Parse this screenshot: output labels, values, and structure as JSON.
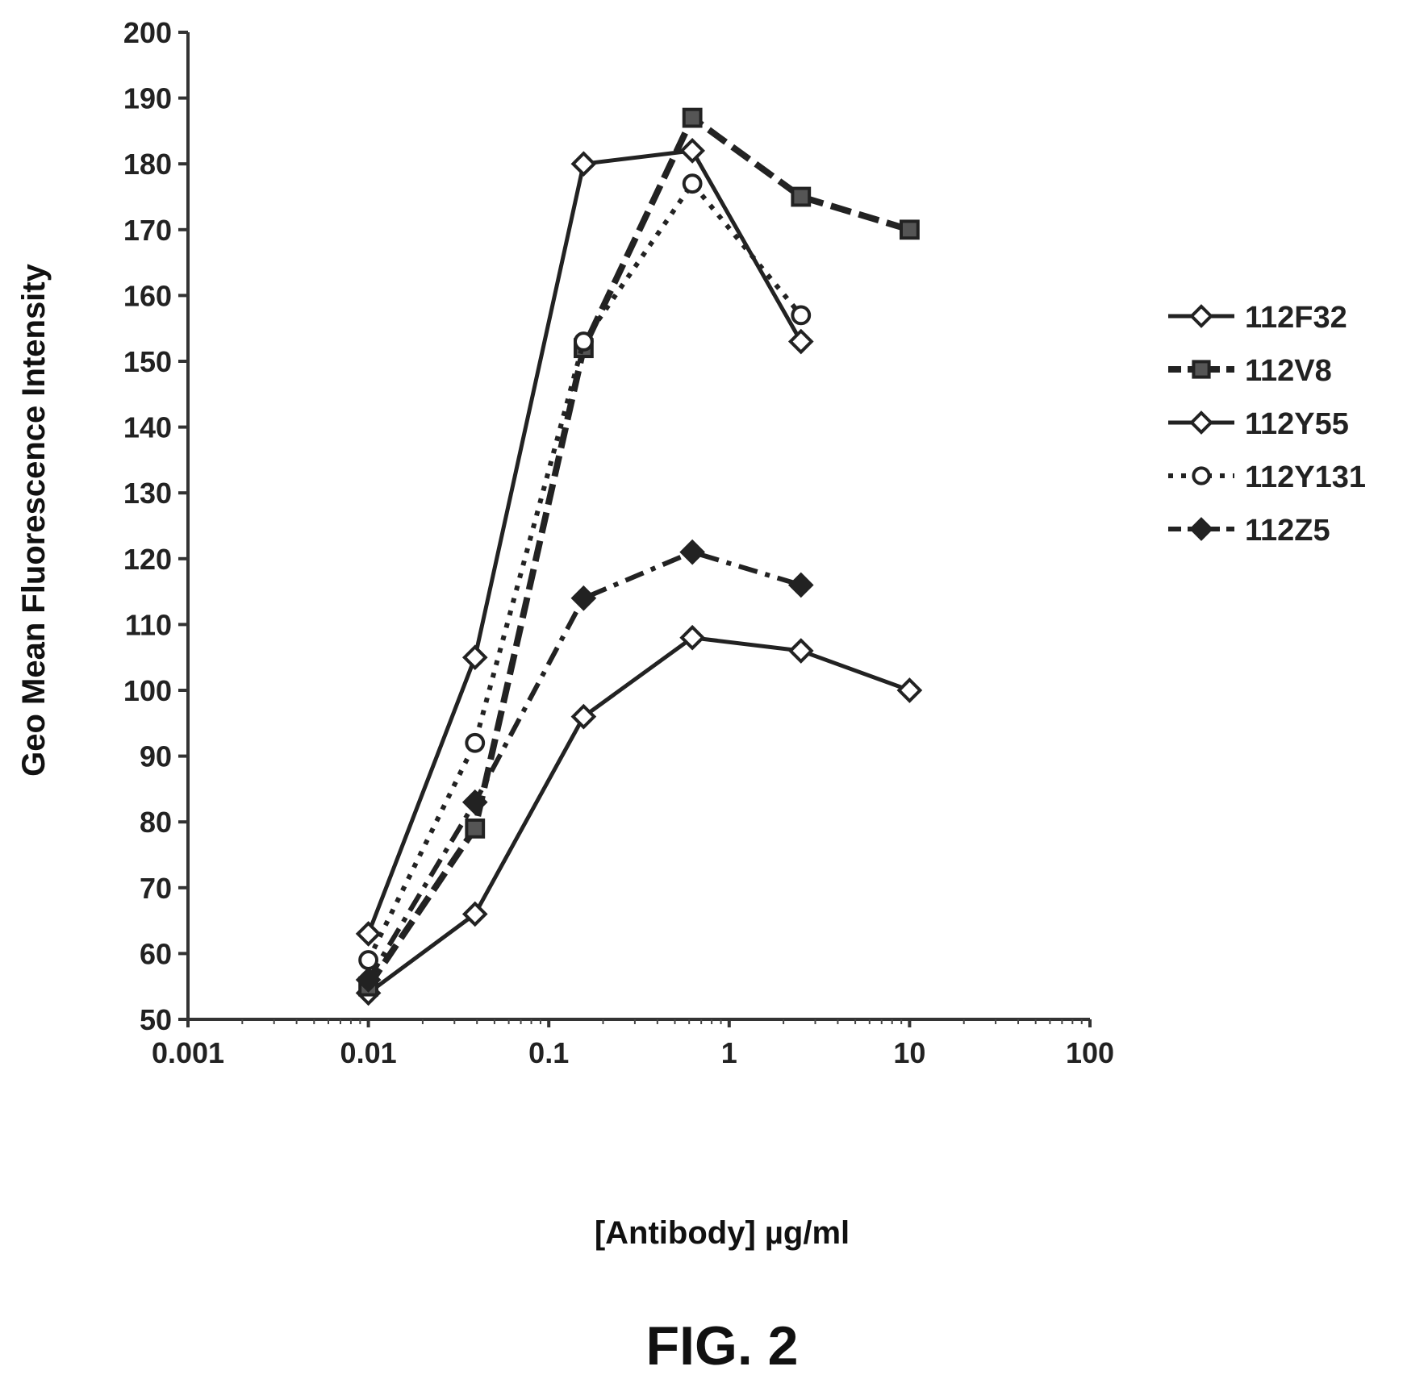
{
  "chart_data": {
    "type": "line",
    "xlabel": "[Antibody] µg/ml",
    "ylabel": "Geo Mean Fluorescence Intensity",
    "caption": "FIG. 2",
    "x_scale": "log",
    "xlim": [
      0.001,
      100
    ],
    "ylim": [
      50,
      200
    ],
    "x_ticks": [
      0.001,
      0.01,
      0.1,
      1,
      10,
      100
    ],
    "x_tick_labels": [
      "0.001",
      "0.01",
      "0.1",
      "1",
      "10",
      "100"
    ],
    "y_ticks": [
      50,
      60,
      70,
      80,
      90,
      100,
      110,
      120,
      130,
      140,
      150,
      160,
      170,
      180,
      190,
      200
    ],
    "y_tick_labels": [
      "50",
      "60",
      "70",
      "80",
      "90",
      "100",
      "110",
      "120",
      "130",
      "140",
      "150",
      "160",
      "170",
      "180",
      "190",
      "200"
    ],
    "grid": false,
    "legend_position": "right",
    "series": [
      {
        "name": "112F32",
        "marker": "diamond-open",
        "line_style": "solid",
        "x": [
          0.01,
          0.039,
          0.156,
          0.625,
          2.5,
          10
        ],
        "y": [
          54,
          66,
          96,
          108,
          106,
          100
        ]
      },
      {
        "name": "112V8",
        "marker": "square-filled",
        "line_style": "dashed",
        "x": [
          0.01,
          0.039,
          0.156,
          0.625,
          2.5,
          10
        ],
        "y": [
          55,
          79,
          152,
          187,
          175,
          170
        ]
      },
      {
        "name": "112Y55",
        "marker": "diamond-open",
        "line_style": "solid",
        "x": [
          0.01,
          0.039,
          0.156,
          0.625,
          2.5
        ],
        "y": [
          63,
          105,
          180,
          182,
          153
        ]
      },
      {
        "name": "112Y131",
        "marker": "circle-open",
        "line_style": "dotted",
        "x": [
          0.01,
          0.039,
          0.156,
          0.625,
          2.5
        ],
        "y": [
          59,
          92,
          153,
          177,
          157
        ]
      },
      {
        "name": "112Z5",
        "marker": "diamond-filled",
        "line_style": "dash-dot",
        "x": [
          0.01,
          0.039,
          0.156,
          0.625,
          2.5
        ],
        "y": [
          56,
          83,
          114,
          121,
          116
        ]
      }
    ]
  }
}
